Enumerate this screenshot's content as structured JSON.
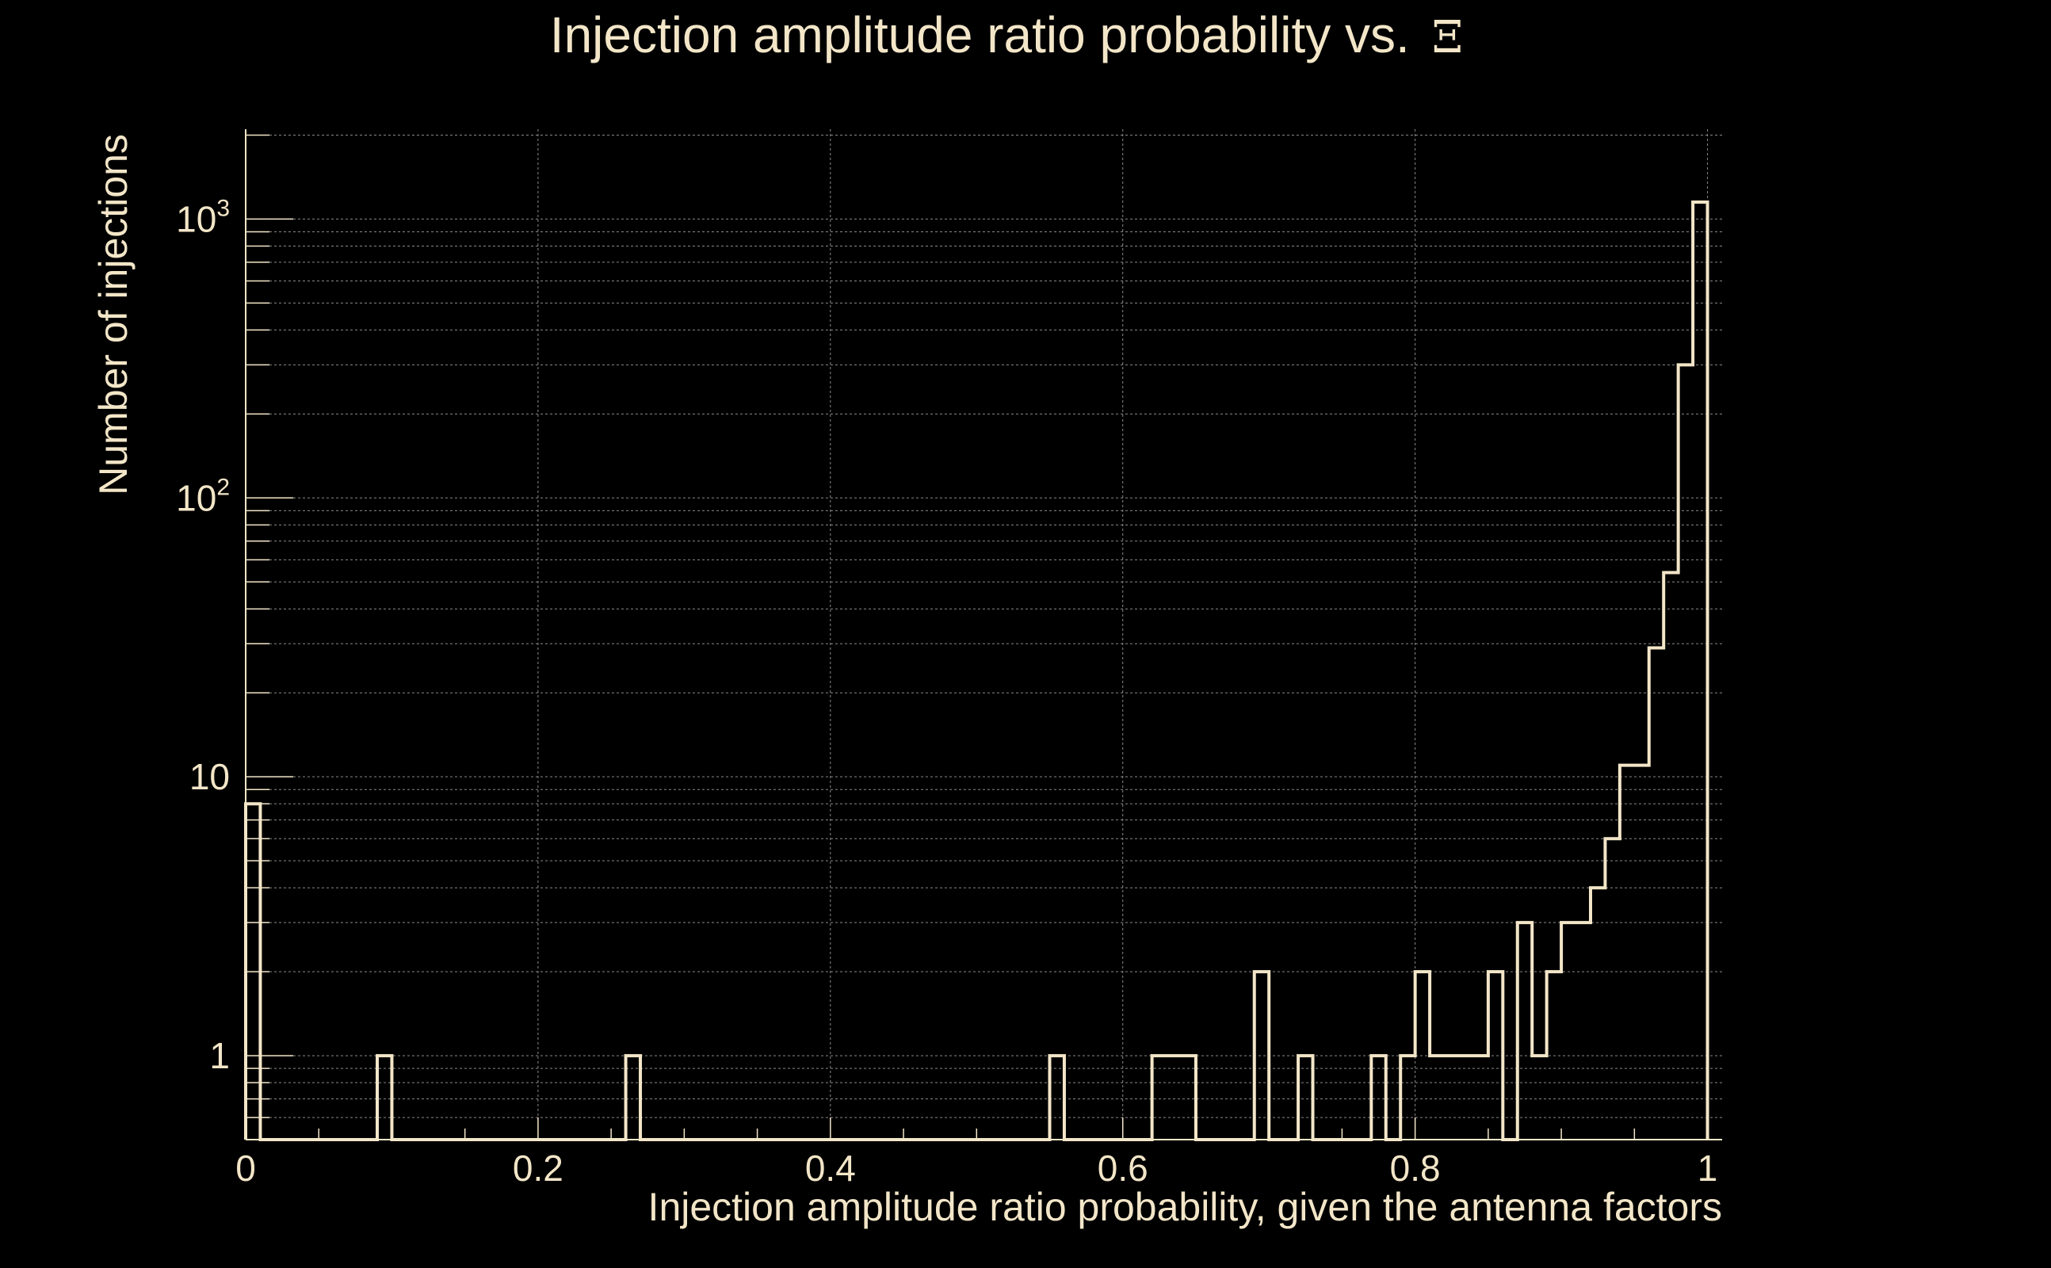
{
  "chart_data": {
    "type": "bar",
    "style": "step-histogram",
    "title": "Injection amplitude ratio probability vs.",
    "title_symbol": "Ξ",
    "xlabel": "Injection amplitude ratio probability, given the antenna factors",
    "ylabel": "Number of injections",
    "xlim": [
      0,
      1.01
    ],
    "ylim": [
      0.5,
      2100
    ],
    "yscale": "log",
    "grid": true,
    "bin_width": 0.01,
    "x_ticks": [
      {
        "value": 0,
        "label": "0"
      },
      {
        "value": 0.2,
        "label": "0.2"
      },
      {
        "value": 0.4,
        "label": "0.4"
      },
      {
        "value": 0.6,
        "label": "0.6"
      },
      {
        "value": 0.8,
        "label": "0.8"
      },
      {
        "value": 1,
        "label": "1"
      }
    ],
    "y_ticks": [
      {
        "value": 1,
        "base": "1",
        "exp": ""
      },
      {
        "value": 10,
        "base": "10",
        "exp": ""
      },
      {
        "value": 100,
        "base": "10",
        "exp": "2"
      },
      {
        "value": 1000,
        "base": "10",
        "exp": "3"
      }
    ],
    "series": [
      {
        "name": "injections",
        "bins": [
          {
            "x": 0.0,
            "count": 8
          },
          {
            "x": 0.09,
            "count": 1
          },
          {
            "x": 0.26,
            "count": 1
          },
          {
            "x": 0.55,
            "count": 1
          },
          {
            "x": 0.62,
            "count": 1
          },
          {
            "x": 0.63,
            "count": 1
          },
          {
            "x": 0.64,
            "count": 1
          },
          {
            "x": 0.69,
            "count": 2
          },
          {
            "x": 0.72,
            "count": 1
          },
          {
            "x": 0.77,
            "count": 1
          },
          {
            "x": 0.79,
            "count": 1
          },
          {
            "x": 0.8,
            "count": 2
          },
          {
            "x": 0.81,
            "count": 1
          },
          {
            "x": 0.82,
            "count": 1
          },
          {
            "x": 0.83,
            "count": 1
          },
          {
            "x": 0.84,
            "count": 1
          },
          {
            "x": 0.85,
            "count": 2
          },
          {
            "x": 0.87,
            "count": 3
          },
          {
            "x": 0.88,
            "count": 1
          },
          {
            "x": 0.89,
            "count": 2
          },
          {
            "x": 0.9,
            "count": 3
          },
          {
            "x": 0.91,
            "count": 3
          },
          {
            "x": 0.92,
            "count": 4
          },
          {
            "x": 0.93,
            "count": 6
          },
          {
            "x": 0.94,
            "count": 11
          },
          {
            "x": 0.95,
            "count": 11
          },
          {
            "x": 0.96,
            "count": 29
          },
          {
            "x": 0.97,
            "count": 54
          },
          {
            "x": 0.98,
            "count": 300
          },
          {
            "x": 0.99,
            "count": 1150
          }
        ]
      }
    ]
  }
}
